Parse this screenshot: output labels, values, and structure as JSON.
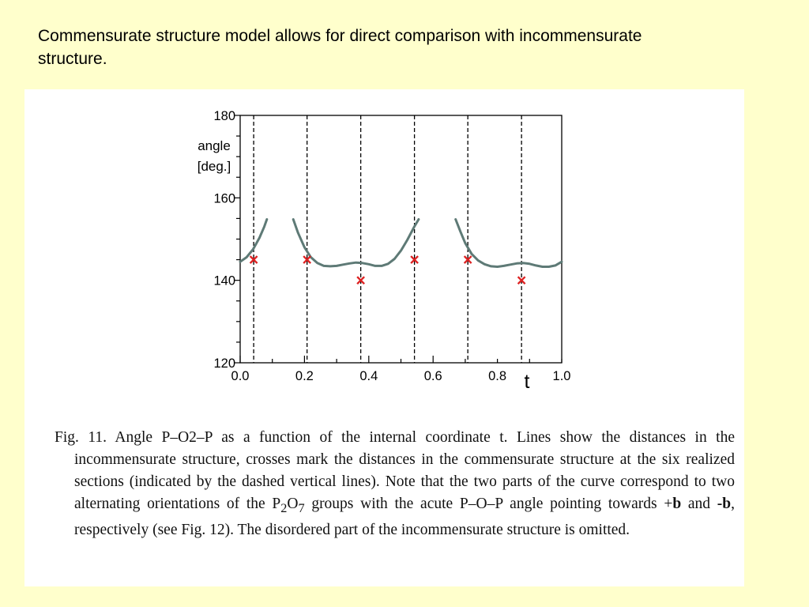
{
  "slide": {
    "title": "Commensurate structure model allows for direct comparison with incommensurate structure."
  },
  "chart_data": {
    "type": "line",
    "title": "",
    "xlabel": "t",
    "ylabel": "angle [deg.]",
    "ylabel_lines": [
      "angle",
      "[deg.]"
    ],
    "xlim": [
      0.0,
      1.0
    ],
    "ylim": [
      120,
      180
    ],
    "x_ticks": [
      "0.0",
      "0.2",
      "0.4",
      "0.6",
      "0.8",
      "1.0"
    ],
    "x_tick_values": [
      0.0,
      0.2,
      0.4,
      0.6,
      0.8,
      1.0
    ],
    "y_ticks": [
      "120",
      "140",
      "160",
      "180"
    ],
    "y_tick_values": [
      120,
      140,
      160,
      180
    ],
    "grid": false,
    "line_color": "#5e7a76",
    "cross_color": "#dd2222",
    "series": [
      {
        "x": [
          0.0,
          0.02,
          0.04,
          0.06,
          0.075,
          0.083
        ],
        "y": [
          144.5,
          145.6,
          147.5,
          150.3,
          153.0,
          154.8
        ]
      },
      {
        "x": [
          0.165,
          0.18,
          0.2,
          0.22,
          0.24,
          0.26,
          0.28,
          0.3,
          0.32,
          0.34,
          0.36,
          0.38,
          0.4,
          0.42,
          0.44,
          0.46,
          0.48,
          0.5,
          0.52,
          0.54,
          0.555
        ],
        "y": [
          154.8,
          151.5,
          148.0,
          145.6,
          144.2,
          143.5,
          143.4,
          143.5,
          143.8,
          144.1,
          144.3,
          144.2,
          143.9,
          143.5,
          143.5,
          144.0,
          145.2,
          147.2,
          149.8,
          152.8,
          154.8
        ]
      },
      {
        "x": [
          0.67,
          0.685,
          0.7,
          0.72,
          0.74,
          0.76,
          0.78,
          0.8,
          0.82,
          0.84,
          0.86,
          0.88,
          0.9,
          0.92,
          0.94,
          0.96,
          0.98,
          1.0
        ],
        "y": [
          154.8,
          151.8,
          149.0,
          146.4,
          144.8,
          143.9,
          143.4,
          143.3,
          143.5,
          143.8,
          144.1,
          144.2,
          144.0,
          143.6,
          143.3,
          143.3,
          143.6,
          144.5
        ]
      }
    ],
    "crosses": [
      {
        "x": 0.042,
        "y": 145
      },
      {
        "x": 0.208,
        "y": 145
      },
      {
        "x": 0.375,
        "y": 140
      },
      {
        "x": 0.542,
        "y": 145
      },
      {
        "x": 0.708,
        "y": 145
      },
      {
        "x": 0.875,
        "y": 140
      }
    ],
    "sections_t": [
      0.042,
      0.208,
      0.375,
      0.542,
      0.708,
      0.875
    ]
  },
  "caption": {
    "label": "Fig. 11.",
    "part1": "Angle P–O2–P as a function of the internal coordinate t. Lines show the distances in the incommensurate structure, crosses mark the distances in the commensurate structure at the six realized sections (indicated by the dashed vertical lines). Note that the two parts of the curve correspond to two alternating orientations of the P",
    "sub1": "2",
    "mid1": "O",
    "sub2": "7",
    "part2": " groups with the acute P–O–P angle pointing towards +",
    "bold1": "b",
    "part3": " and ",
    "bold2": "-b",
    "part4": ", respectively (see Fig. 12). The disordered part of the incommensurate structure is omitted."
  }
}
